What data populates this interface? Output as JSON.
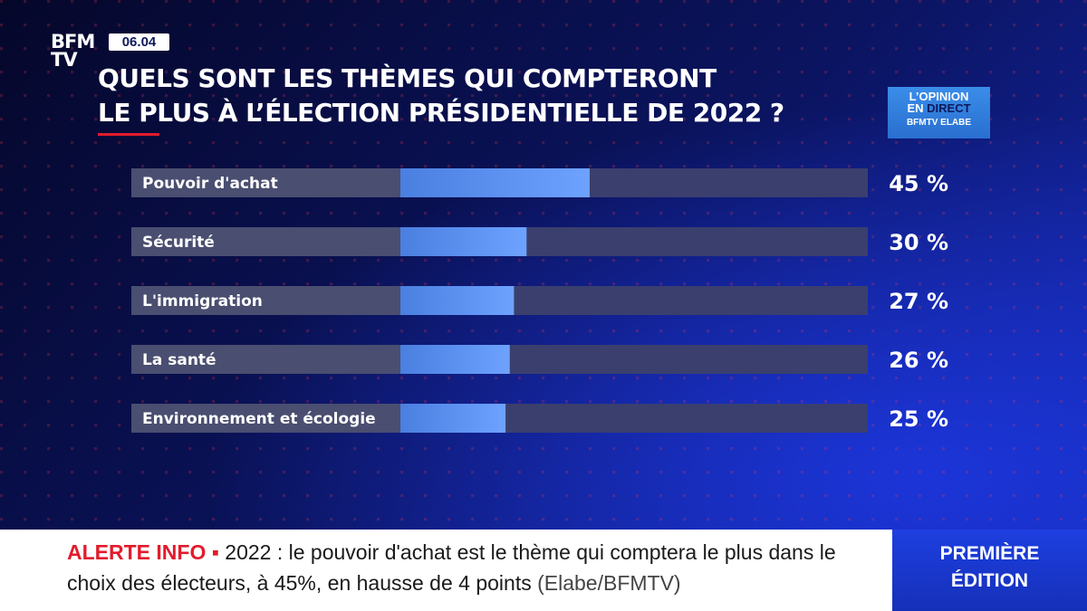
{
  "brand": {
    "logo_line1": "BFM",
    "logo_line2": "TV",
    "time": "06.04"
  },
  "title": {
    "line1": "QUELS SONT LES THÈMES QUI COMPTERONT",
    "line2": "LE PLUS À L’ÉLECTION PRÉSIDENTIELLE DE 2022 ?"
  },
  "badge": {
    "line1": "L’OPINION",
    "line2a": "EN ",
    "line2b": "DIRECT",
    "line3": "BFMTV ELABE"
  },
  "chart_data": {
    "type": "bar",
    "orientation": "horizontal",
    "title": "QUELS SONT LES THÈMES QUI COMPTERONT LE PLUS À L’ÉLECTION PRÉSIDENTIELLE DE 2022 ?",
    "categories": [
      "Pouvoir d'achat",
      "Sécurité",
      "L'immigration",
      "La santé",
      "Environnement et écologie"
    ],
    "values": [
      45,
      30,
      27,
      26,
      25
    ],
    "value_labels": [
      "45 %",
      "30 %",
      "27 %",
      "26 %",
      "25 %"
    ],
    "xlim": [
      0,
      100
    ],
    "unit": "%"
  },
  "colors": {
    "bar_fill_start": "#4a7fe0",
    "bar_fill_end": "#6ea2ff",
    "track": "#3a3f6e",
    "label_box": "#4a4e70",
    "alert": "#e21b2c"
  },
  "ticker": {
    "alert": "ALERTE INFO",
    "separator": "▪",
    "text": "2022 : le pouvoir d'achat est le thème qui comptera le plus dans le choix des électeurs, à 45%, en hausse de 4 points",
    "source": "(Elabe/BFMTV)"
  },
  "edition": {
    "line1": "PREMIÈRE",
    "line2": "ÉDITION"
  }
}
